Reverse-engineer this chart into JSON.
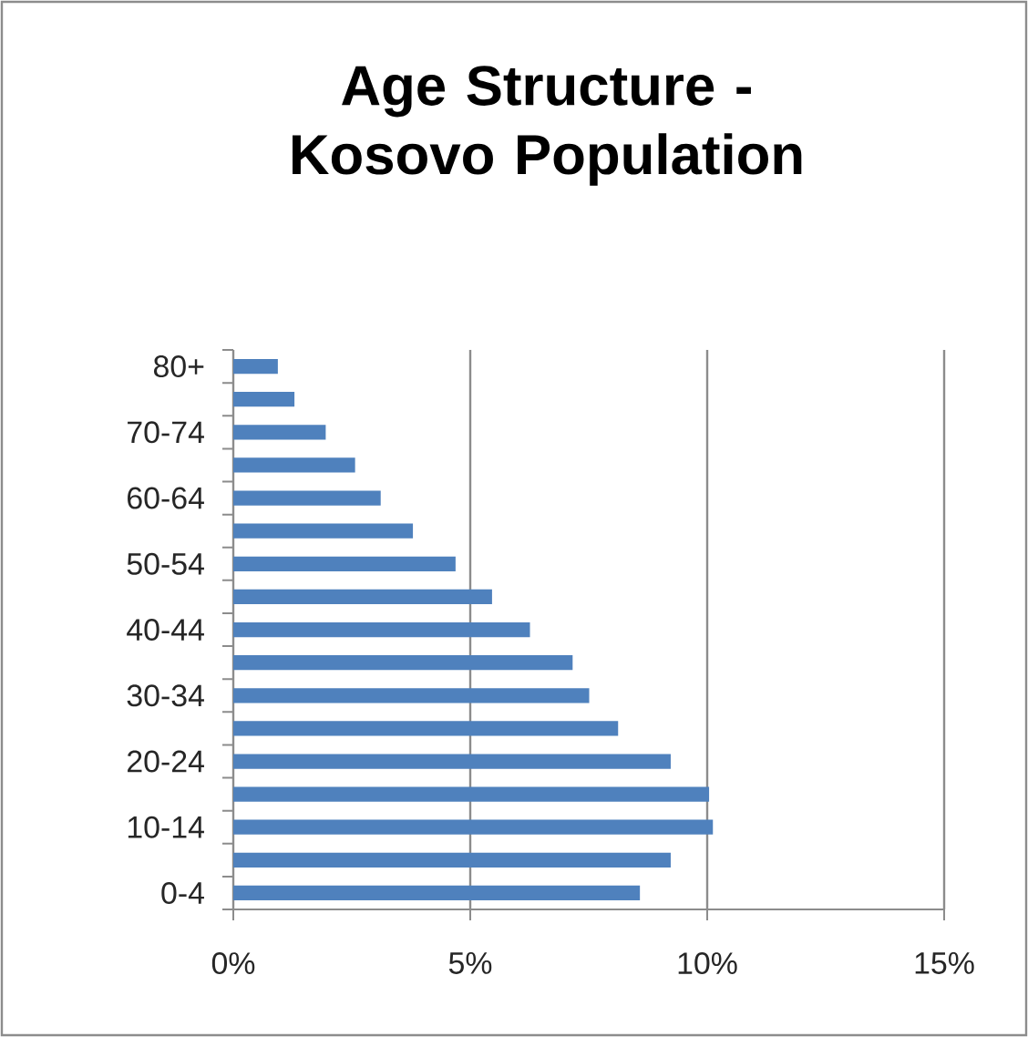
{
  "chart_data": {
    "type": "bar",
    "orientation": "horizontal",
    "title": "Age Structure - Kosovo Population",
    "categories": [
      "80+",
      null,
      "70-74",
      null,
      "60-64",
      null,
      "50-54",
      null,
      "40-44",
      null,
      "30-34",
      null,
      "20-24",
      null,
      "10-14",
      null,
      "0-4"
    ],
    "values": [
      0.94,
      1.29,
      1.95,
      2.57,
      3.11,
      3.79,
      4.69,
      5.46,
      6.26,
      7.16,
      7.51,
      8.12,
      9.23,
      10.04,
      10.12,
      9.23,
      8.58
    ],
    "color": "#4f81bd",
    "xlim": [
      0,
      15
    ],
    "xticks": [
      {
        "value": 0,
        "label": "0%"
      },
      {
        "value": 5,
        "label": "5%"
      },
      {
        "value": 10,
        "label": "10%"
      },
      {
        "value": 15,
        "label": "15%"
      }
    ],
    "grid": "x"
  }
}
